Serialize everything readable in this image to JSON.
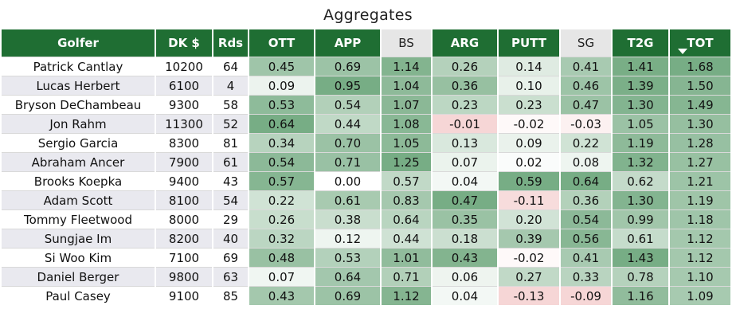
{
  "title": "Aggregates",
  "columns": [
    "Golfer",
    "DK $",
    "Rds",
    "OTT",
    "APP",
    "BS",
    "ARG",
    "PUTT",
    "SG",
    "T2G",
    "TOT"
  ],
  "sorted_column": "TOT",
  "colors": {
    "header_green": "#1f6e33",
    "header_gray": "#e6e6e6",
    "pos_green": "#5f9e6f",
    "neg_red": "#f2c4c4"
  },
  "chart_data": {
    "type": "table",
    "title": "Aggregates",
    "columns": [
      "Golfer",
      "DK $",
      "Rds",
      "OTT",
      "APP",
      "BS",
      "ARG",
      "PUTT",
      "SG",
      "T2G",
      "TOT"
    ],
    "rows": [
      [
        "Patrick Cantlay",
        "10200",
        "64",
        "0.45",
        "0.69",
        "1.14",
        "0.26",
        "0.14",
        "0.41",
        "1.41",
        "1.68"
      ],
      [
        "Lucas Herbert",
        "6100",
        "4",
        "0.09",
        "0.95",
        "1.04",
        "0.36",
        "0.10",
        "0.46",
        "1.39",
        "1.50"
      ],
      [
        "Bryson DeChambeau",
        "9300",
        "58",
        "0.53",
        "0.54",
        "1.07",
        "0.23",
        "0.23",
        "0.47",
        "1.30",
        "1.49"
      ],
      [
        "Jon Rahm",
        "11300",
        "52",
        "0.64",
        "0.44",
        "1.08",
        "-0.01",
        "-0.02",
        "-0.03",
        "1.05",
        "1.30"
      ],
      [
        "Sergio Garcia",
        "8300",
        "81",
        "0.34",
        "0.70",
        "1.05",
        "0.13",
        "0.09",
        "0.22",
        "1.19",
        "1.28"
      ],
      [
        "Abraham Ancer",
        "7900",
        "61",
        "0.54",
        "0.71",
        "1.25",
        "0.07",
        "0.02",
        "0.08",
        "1.32",
        "1.27"
      ],
      [
        "Brooks Koepka",
        "9400",
        "43",
        "0.57",
        "0.00",
        "0.57",
        "0.04",
        "0.59",
        "0.64",
        "0.62",
        "1.21"
      ],
      [
        "Adam Scott",
        "8100",
        "54",
        "0.22",
        "0.61",
        "0.83",
        "0.47",
        "-0.11",
        "0.36",
        "1.30",
        "1.19"
      ],
      [
        "Tommy Fleetwood",
        "8000",
        "29",
        "0.26",
        "0.38",
        "0.64",
        "0.35",
        "0.20",
        "0.54",
        "0.99",
        "1.18"
      ],
      [
        "Sungjae Im",
        "8200",
        "40",
        "0.32",
        "0.12",
        "0.44",
        "0.18",
        "0.39",
        "0.56",
        "0.61",
        "1.12"
      ],
      [
        "Si Woo Kim",
        "7100",
        "69",
        "0.48",
        "0.53",
        "1.01",
        "0.43",
        "-0.02",
        "0.41",
        "1.43",
        "1.12"
      ],
      [
        "Daniel Berger",
        "9800",
        "63",
        "0.07",
        "0.64",
        "0.71",
        "0.06",
        "0.27",
        "0.33",
        "0.78",
        "1.10"
      ],
      [
        "Paul Casey",
        "9100",
        "85",
        "0.43",
        "0.69",
        "1.12",
        "0.04",
        "-0.13",
        "-0.09",
        "1.16",
        "1.09"
      ]
    ]
  }
}
